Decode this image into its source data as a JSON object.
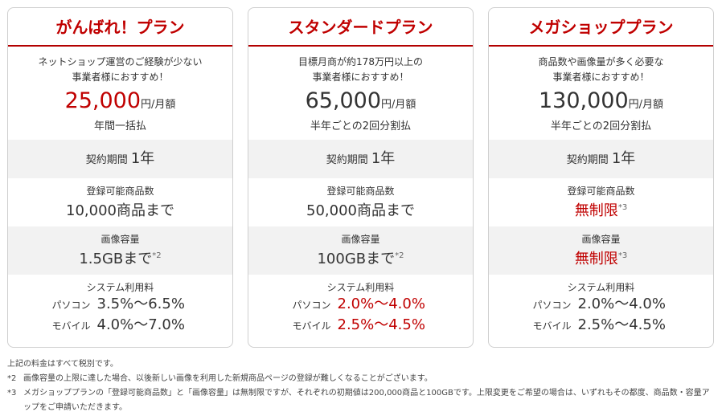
{
  "plans": [
    {
      "title": "がんばれ！プラン",
      "intro1": "ネットショップ運営のご経験が少ない",
      "intro2": "事業者様におすすめ！",
      "price": "25,000",
      "price_unit": "円/月額",
      "price_color": "#c00000",
      "payment": "年間一括払",
      "contract_label": "契約期間",
      "contract_value": "1年",
      "items_label": "登録可能商品数",
      "items_value": "10,000商品まで",
      "items_note": "",
      "image_label": "画像容量",
      "image_value": "1.5GBまで",
      "image_note": "*2",
      "system_label": "システム利用料",
      "pc_label": "パソコン",
      "pc_value": "3.5%～6.5%",
      "mobile_label": "モバイル",
      "mobile_value": "4.0%～7.0%"
    },
    {
      "title": "スタンダードプラン",
      "intro1": "目標月商が約178万円以上の",
      "intro2": "事業者様におすすめ！",
      "price": "65,000",
      "price_unit": "円/月額",
      "price_color": "#333333",
      "payment": "半年ごとの2回分割払",
      "contract_label": "契約期間",
      "contract_value": "1年",
      "items_label": "登録可能商品数",
      "items_value": "50,000商品まで",
      "items_note": "",
      "image_label": "画像容量",
      "image_value": "100GBまで",
      "image_note": "*2",
      "system_label": "システム利用料",
      "pc_label": "パソコン",
      "pc_value": "2.0%～4.0%",
      "mobile_label": "モバイル",
      "mobile_value": "2.5%～4.5%"
    },
    {
      "title": "メガショッププラン",
      "intro1": "商品数や画像量が多く必要な",
      "intro2": "事業者様におすすめ！",
      "price": "130,000",
      "price_unit": "円/月額",
      "price_color": "#333333",
      "payment": "半年ごとの2回分割払",
      "contract_label": "契約期間",
      "contract_value": "1年",
      "items_label": "登録可能商品数",
      "items_value": "無制限",
      "items_note": "*3",
      "image_label": "画像容量",
      "image_value": "無制限",
      "image_note": "*3",
      "system_label": "システム利用料",
      "pc_label": "パソコン",
      "pc_value": "2.0%～4.0%",
      "mobile_label": "モバイル",
      "mobile_value": "2.5%～4.5%"
    }
  ],
  "notes": {
    "n1": "上記の料金はすべて税別です。",
    "n2_mark": "*2",
    "n2": "画像容量の上限に達した場合、以後新しい画像を利用した新規商品ページの登録が難しくなることがございます。",
    "n3_mark": "*3",
    "n3": "メガショッププランの「登録可能商品数」と「画像容量」は無制限ですが、それぞれの初期値は200,000商品と100GBです。上限変更をご希望の場合は、いずれもその都度、商品数・容量アップをご申請いただきます。"
  }
}
